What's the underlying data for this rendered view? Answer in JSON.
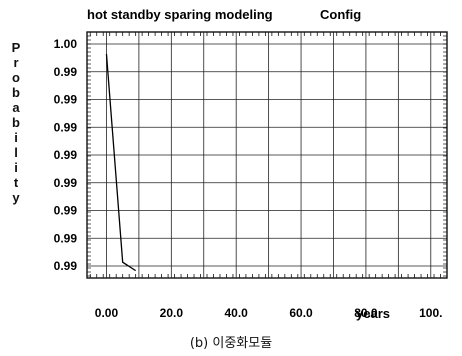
{
  "chart_data": {
    "type": "line",
    "title": "hot standby sparing modeling",
    "title_right": "Config",
    "xlabel": "years",
    "ylabel": "Probability",
    "x_ticks": [
      "0.00",
      "20.0",
      "40.0",
      "60.0",
      "80.0",
      "100."
    ],
    "y_ticks": [
      "1.00",
      "0.99",
      "0.99",
      "0.99",
      "0.99",
      "0.99",
      "0.99",
      "0.99",
      "0.99"
    ],
    "xlim": [
      -6,
      105
    ],
    "ylim": [
      0.9891,
      1.0008
    ],
    "grid": true,
    "series": [
      {
        "x": [
          0,
          5,
          9
        ],
        "y": [
          0.99975,
          0.98985,
          0.98945
        ]
      }
    ]
  },
  "caption": "(b) 이중화모듈"
}
